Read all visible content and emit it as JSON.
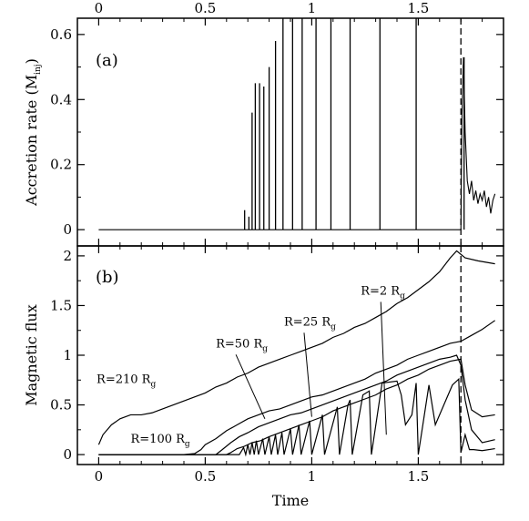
{
  "chart_data": [
    {
      "panel": "a",
      "type": "line",
      "panel_label": "(a)",
      "xlabel": "",
      "ylabel_main": "Accretion rate (",
      "ylabel_symbol": "M",
      "ylabel_sub": "inj",
      "ylabel_end": ")",
      "xlim": [
        -0.1,
        1.9
      ],
      "ylim": [
        -0.05,
        0.65
      ],
      "x_ticks": [
        {
          "value": 0,
          "label": "0"
        },
        {
          "value": 0.5,
          "label": "0.5"
        },
        {
          "value": 1,
          "label": "1"
        },
        {
          "value": 1.5,
          "label": "1.5"
        }
      ],
      "y_ticks": [
        {
          "value": 0,
          "label": "0"
        },
        {
          "value": 0.2,
          "label": "0.2"
        },
        {
          "value": 0.4,
          "label": "0.4"
        },
        {
          "value": 0.6,
          "label": "0.6"
        }
      ],
      "accretion_spikes": [
        {
          "x": 0.685,
          "y": 0.06
        },
        {
          "x": 0.705,
          "y": 0.04
        },
        {
          "x": 0.72,
          "y": 0.36
        },
        {
          "x": 0.735,
          "y": 0.45
        },
        {
          "x": 0.755,
          "y": 0.45
        },
        {
          "x": 0.775,
          "y": 0.44
        },
        {
          "x": 0.8,
          "y": 0.5
        },
        {
          "x": 0.83,
          "y": 0.58
        },
        {
          "x": 0.865,
          "y": 0.65
        },
        {
          "x": 0.91,
          "y": 0.65
        },
        {
          "x": 0.955,
          "y": 0.65
        },
        {
          "x": 1.02,
          "y": 0.65
        },
        {
          "x": 1.09,
          "y": 0.65
        },
        {
          "x": 1.18,
          "y": 0.65
        },
        {
          "x": 1.32,
          "y": 0.65
        },
        {
          "x": 1.49,
          "y": 0.65
        },
        {
          "x": 1.715,
          "y": 0.53
        }
      ],
      "late_noisy_series": [
        [
          1.7,
          0.0
        ],
        [
          1.705,
          0.35
        ],
        [
          1.712,
          0.53
        ],
        [
          1.72,
          0.3
        ],
        [
          1.73,
          0.15
        ],
        [
          1.74,
          0.11
        ],
        [
          1.75,
          0.15
        ],
        [
          1.76,
          0.09
        ],
        [
          1.77,
          0.12
        ],
        [
          1.78,
          0.08
        ],
        [
          1.79,
          0.11
        ],
        [
          1.8,
          0.09
        ],
        [
          1.81,
          0.12
        ],
        [
          1.82,
          0.07
        ],
        [
          1.83,
          0.1
        ],
        [
          1.84,
          0.05
        ],
        [
          1.85,
          0.09
        ],
        [
          1.86,
          0.11
        ]
      ],
      "vertical_marker_x": 1.7
    },
    {
      "panel": "b",
      "type": "line",
      "panel_label": "(b)",
      "xlabel": "Time",
      "ylabel": "Magnetic flux",
      "xlim": [
        -0.1,
        1.9
      ],
      "ylim": [
        -0.1,
        2.1
      ],
      "x_ticks": [
        {
          "value": 0,
          "label": "0"
        },
        {
          "value": 0.5,
          "label": "0.5"
        },
        {
          "value": 1,
          "label": "1"
        },
        {
          "value": 1.5,
          "label": "1.5"
        }
      ],
      "y_ticks": [
        {
          "value": 0,
          "label": "0"
        },
        {
          "value": 0.5,
          "label": "0.5"
        },
        {
          "value": 1,
          "label": "1"
        },
        {
          "value": 1.5,
          "label": "1.5"
        },
        {
          "value": 2,
          "label": "2"
        }
      ],
      "series": [
        {
          "name": "R=210 R_g",
          "points": [
            [
              0.0,
              0.1
            ],
            [
              0.02,
              0.2
            ],
            [
              0.06,
              0.3
            ],
            [
              0.1,
              0.36
            ],
            [
              0.15,
              0.4
            ],
            [
              0.2,
              0.4
            ],
            [
              0.25,
              0.42
            ],
            [
              0.3,
              0.46
            ],
            [
              0.35,
              0.5
            ],
            [
              0.4,
              0.54
            ],
            [
              0.45,
              0.58
            ],
            [
              0.5,
              0.62
            ],
            [
              0.55,
              0.68
            ],
            [
              0.6,
              0.72
            ],
            [
              0.65,
              0.78
            ],
            [
              0.7,
              0.82
            ],
            [
              0.75,
              0.88
            ],
            [
              0.8,
              0.92
            ],
            [
              0.85,
              0.96
            ],
            [
              0.9,
              1.0
            ],
            [
              0.95,
              1.04
            ],
            [
              1.0,
              1.08
            ],
            [
              1.05,
              1.12
            ],
            [
              1.1,
              1.18
            ],
            [
              1.15,
              1.22
            ],
            [
              1.2,
              1.28
            ],
            [
              1.25,
              1.32
            ],
            [
              1.3,
              1.38
            ],
            [
              1.35,
              1.44
            ],
            [
              1.4,
              1.52
            ],
            [
              1.45,
              1.58
            ],
            [
              1.5,
              1.66
            ],
            [
              1.55,
              1.74
            ],
            [
              1.6,
              1.84
            ],
            [
              1.65,
              1.98
            ],
            [
              1.68,
              2.05
            ],
            [
              1.72,
              1.98
            ],
            [
              1.78,
              1.95
            ],
            [
              1.86,
              1.92
            ]
          ]
        },
        {
          "name": "R=100 R_g",
          "points": [
            [
              0.0,
              0.0
            ],
            [
              0.4,
              0.0
            ],
            [
              0.45,
              0.01
            ],
            [
              0.48,
              0.05
            ],
            [
              0.5,
              0.1
            ],
            [
              0.55,
              0.16
            ],
            [
              0.6,
              0.24
            ],
            [
              0.65,
              0.3
            ],
            [
              0.7,
              0.36
            ],
            [
              0.75,
              0.4
            ],
            [
              0.8,
              0.44
            ],
            [
              0.85,
              0.46
            ],
            [
              0.9,
              0.5
            ],
            [
              0.95,
              0.54
            ],
            [
              1.0,
              0.58
            ],
            [
              1.05,
              0.6
            ],
            [
              1.1,
              0.64
            ],
            [
              1.15,
              0.68
            ],
            [
              1.2,
              0.72
            ],
            [
              1.25,
              0.76
            ],
            [
              1.3,
              0.82
            ],
            [
              1.35,
              0.86
            ],
            [
              1.4,
              0.9
            ],
            [
              1.45,
              0.96
            ],
            [
              1.5,
              1.0
            ],
            [
              1.55,
              1.04
            ],
            [
              1.6,
              1.08
            ],
            [
              1.65,
              1.12
            ],
            [
              1.7,
              1.14
            ],
            [
              1.75,
              1.2
            ],
            [
              1.8,
              1.26
            ],
            [
              1.86,
              1.35
            ]
          ]
        },
        {
          "name": "R=50 R_g",
          "points": [
            [
              0.0,
              0.0
            ],
            [
              0.55,
              0.0
            ],
            [
              0.58,
              0.05
            ],
            [
              0.62,
              0.12
            ],
            [
              0.66,
              0.18
            ],
            [
              0.7,
              0.22
            ],
            [
              0.75,
              0.28
            ],
            [
              0.8,
              0.32
            ],
            [
              0.85,
              0.36
            ],
            [
              0.9,
              0.4
            ],
            [
              0.95,
              0.42
            ],
            [
              1.0,
              0.46
            ],
            [
              1.05,
              0.5
            ],
            [
              1.1,
              0.54
            ],
            [
              1.15,
              0.58
            ],
            [
              1.2,
              0.62
            ],
            [
              1.25,
              0.66
            ],
            [
              1.3,
              0.7
            ],
            [
              1.35,
              0.74
            ],
            [
              1.4,
              0.8
            ],
            [
              1.45,
              0.84
            ],
            [
              1.5,
              0.88
            ],
            [
              1.55,
              0.92
            ],
            [
              1.6,
              0.96
            ],
            [
              1.65,
              0.98
            ],
            [
              1.68,
              1.0
            ],
            [
              1.7,
              0.9
            ],
            [
              1.72,
              0.55
            ],
            [
              1.75,
              0.25
            ],
            [
              1.8,
              0.12
            ],
            [
              1.86,
              0.15
            ]
          ]
        },
        {
          "name": "R=25 R_g",
          "points": [
            [
              0.0,
              0.0
            ],
            [
              0.6,
              0.0
            ],
            [
              0.62,
              0.02
            ],
            [
              0.65,
              0.06
            ],
            [
              0.68,
              0.08
            ],
            [
              0.72,
              0.12
            ],
            [
              0.76,
              0.14
            ],
            [
              0.8,
              0.18
            ],
            [
              0.85,
              0.22
            ],
            [
              0.9,
              0.26
            ],
            [
              0.95,
              0.3
            ],
            [
              1.0,
              0.34
            ],
            [
              1.05,
              0.38
            ],
            [
              1.1,
              0.44
            ],
            [
              1.15,
              0.48
            ],
            [
              1.2,
              0.52
            ],
            [
              1.25,
              0.56
            ],
            [
              1.3,
              0.6
            ],
            [
              1.35,
              0.66
            ],
            [
              1.4,
              0.7
            ],
            [
              1.45,
              0.76
            ],
            [
              1.5,
              0.8
            ],
            [
              1.55,
              0.86
            ],
            [
              1.6,
              0.9
            ],
            [
              1.65,
              0.94
            ],
            [
              1.7,
              0.96
            ],
            [
              1.72,
              0.7
            ],
            [
              1.75,
              0.45
            ],
            [
              1.8,
              0.38
            ],
            [
              1.86,
              0.4
            ]
          ]
        },
        {
          "name": "R=2 R_g",
          "points": [
            [
              0.0,
              0.0
            ],
            [
              0.66,
              0.0
            ],
            [
              0.68,
              0.07
            ],
            [
              0.69,
              0.0
            ],
            [
              0.7,
              0.1
            ],
            [
              0.71,
              0.0
            ],
            [
              0.72,
              0.12
            ],
            [
              0.73,
              0.0
            ],
            [
              0.74,
              0.14
            ],
            [
              0.75,
              0.0
            ],
            [
              0.77,
              0.16
            ],
            [
              0.78,
              0.0
            ],
            [
              0.8,
              0.18
            ],
            [
              0.81,
              0.0
            ],
            [
              0.83,
              0.2
            ],
            [
              0.84,
              0.0
            ],
            [
              0.86,
              0.22
            ],
            [
              0.87,
              0.0
            ],
            [
              0.9,
              0.26
            ],
            [
              0.91,
              0.0
            ],
            [
              0.94,
              0.3
            ],
            [
              0.95,
              0.0
            ],
            [
              0.99,
              0.34
            ],
            [
              1.0,
              0.0
            ],
            [
              1.05,
              0.4
            ],
            [
              1.06,
              0.0
            ],
            [
              1.12,
              0.48
            ],
            [
              1.13,
              0.0
            ],
            [
              1.17,
              0.5
            ],
            [
              1.18,
              0.55
            ],
            [
              1.19,
              0.0
            ],
            [
              1.24,
              0.6
            ],
            [
              1.27,
              0.64
            ],
            [
              1.28,
              0.0
            ],
            [
              1.33,
              0.72
            ],
            [
              1.4,
              0.74
            ],
            [
              1.42,
              0.6
            ],
            [
              1.44,
              0.3
            ],
            [
              1.47,
              0.4
            ],
            [
              1.49,
              0.72
            ],
            [
              1.5,
              0.0
            ],
            [
              1.55,
              0.7
            ],
            [
              1.58,
              0.3
            ],
            [
              1.62,
              0.5
            ],
            [
              1.66,
              0.7
            ],
            [
              1.69,
              0.76
            ],
            [
              1.7,
              0.02
            ],
            [
              1.72,
              0.2
            ],
            [
              1.74,
              0.05
            ],
            [
              1.76,
              0.05
            ],
            [
              1.8,
              0.04
            ],
            [
              1.86,
              0.06
            ]
          ]
        }
      ],
      "annotations": [
        {
          "text": "R=210 R",
          "sub": "g",
          "label_x": -0.01,
          "label_y": 0.72,
          "tx": null,
          "ty": null
        },
        {
          "text": "R=100 R",
          "sub": "g",
          "label_x": 0.15,
          "label_y": 0.12,
          "tx": null,
          "ty": null
        },
        {
          "text": "R=50 R",
          "sub": "g",
          "label_x": 0.55,
          "label_y": 1.08,
          "tx": 0.78,
          "ty": 0.36
        },
        {
          "text": "R=25 R",
          "sub": "g",
          "label_x": 0.87,
          "label_y": 1.3,
          "tx": 1.0,
          "ty": 0.38
        },
        {
          "text": "R=2 R",
          "sub": "g",
          "label_x": 1.23,
          "label_y": 1.61,
          "tx": 1.35,
          "ty": 0.2
        }
      ],
      "vertical_marker_x": 1.7
    }
  ]
}
